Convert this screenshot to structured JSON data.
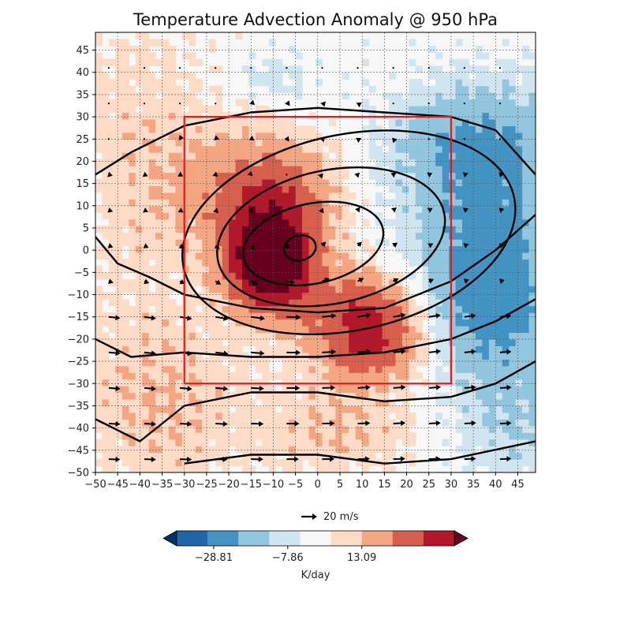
{
  "chart_data": {
    "type": "heatmap",
    "title": "Temperature Advection Anomaly @ 950 hPa",
    "xlabel": "",
    "ylabel": "",
    "xlim": [
      -50,
      49
    ],
    "ylim": [
      -50,
      49
    ],
    "x_ticks": [
      -50,
      -45,
      -40,
      -35,
      -30,
      -25,
      -20,
      -15,
      -10,
      -5,
      0,
      5,
      10,
      15,
      20,
      25,
      30,
      35,
      40,
      45
    ],
    "y_ticks": [
      -50,
      -45,
      -40,
      -35,
      -30,
      -25,
      -20,
      -15,
      -10,
      -5,
      0,
      5,
      10,
      15,
      20,
      25,
      30,
      35,
      40,
      45
    ],
    "grid": true,
    "colormap": "RdBu_r",
    "colorbar": {
      "label": "K/day",
      "tick_values": [
        -28.81,
        -7.86,
        13.09
      ],
      "tick_labels": [
        "−28.81",
        "−7.86",
        "13.09"
      ],
      "colors": [
        "#053061",
        "#2166ac",
        "#4393c3",
        "#92c5de",
        "#d1e5f0",
        "#f7f7f7",
        "#fddbc7",
        "#f4a582",
        "#d6604d",
        "#b2182b",
        "#67001f"
      ],
      "extend": "both"
    },
    "field_features": [
      {
        "kind": "warm_max",
        "x": -11,
        "y": -3,
        "level": 5
      },
      {
        "kind": "warm",
        "x": -8,
        "y": 5,
        "level": 4
      },
      {
        "kind": "warm",
        "x": 10,
        "y": -12,
        "level": 3
      },
      {
        "kind": "warm",
        "x": 12,
        "y": -22,
        "level": 4
      },
      {
        "kind": "cool",
        "x": 35,
        "y": 5,
        "level": 2
      },
      {
        "kind": "cool",
        "x": 40,
        "y": -15,
        "level": 1
      }
    ],
    "contours": {
      "center": [
        -5,
        0
      ],
      "description": "closed height contours around a low near (-5, 0)"
    },
    "box": {
      "x0": -30,
      "x1": 30,
      "y0": -30,
      "y1": 30,
      "color": "#e31a1c"
    },
    "quiver_key": {
      "label": "20 m/s",
      "speed": 20
    }
  }
}
